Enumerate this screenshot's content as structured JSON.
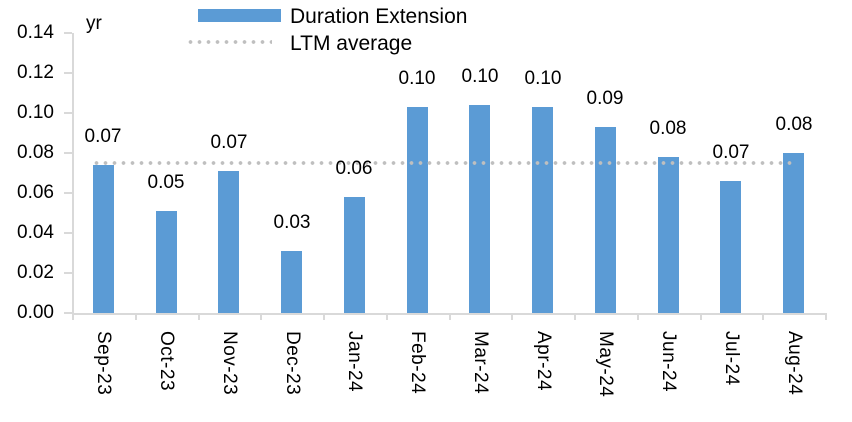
{
  "chart_data": {
    "type": "bar",
    "title": "",
    "unit_label": "yr",
    "categories": [
      "Sep-23",
      "Oct-23",
      "Nov-23",
      "Dec-23",
      "Jan-24",
      "Feb-24",
      "Mar-24",
      "Apr-24",
      "May-24",
      "Jun-24",
      "Jul-24",
      "Aug-24"
    ],
    "series": [
      {
        "name": "Duration Extension",
        "values": [
          0.074,
          0.051,
          0.071,
          0.031,
          0.058,
          0.103,
          0.104,
          0.103,
          0.093,
          0.078,
          0.066,
          0.08
        ],
        "data_labels": [
          "0.07",
          "0.05",
          "0.07",
          "0.03",
          "0.06",
          "0.10",
          "0.10",
          "0.10",
          "0.09",
          "0.08",
          "0.07",
          "0.08"
        ]
      }
    ],
    "average_line": {
      "name": "LTM average",
      "value": 0.075,
      "style": "dotted"
    },
    "ylim": [
      0,
      0.14
    ],
    "ytick_step": 0.02,
    "ytick_labels": [
      "0.00",
      "0.02",
      "0.04",
      "0.06",
      "0.08",
      "0.10",
      "0.12",
      "0.14"
    ],
    "xlabel": "",
    "ylabel": "yr",
    "grid": false,
    "legend_position": "top",
    "x_label_rotation": "90deg-clockwise"
  },
  "legend": {
    "items": [
      {
        "label": "Duration Extension",
        "swatch": "bar"
      },
      {
        "label": "LTM average",
        "swatch": "dotted-line"
      }
    ]
  },
  "colors": {
    "bar": "#5B9BD5",
    "average_line": "#BFBFBF",
    "axis": "#D9D9D9",
    "text": "#000000",
    "background": "#FFFFFF"
  }
}
